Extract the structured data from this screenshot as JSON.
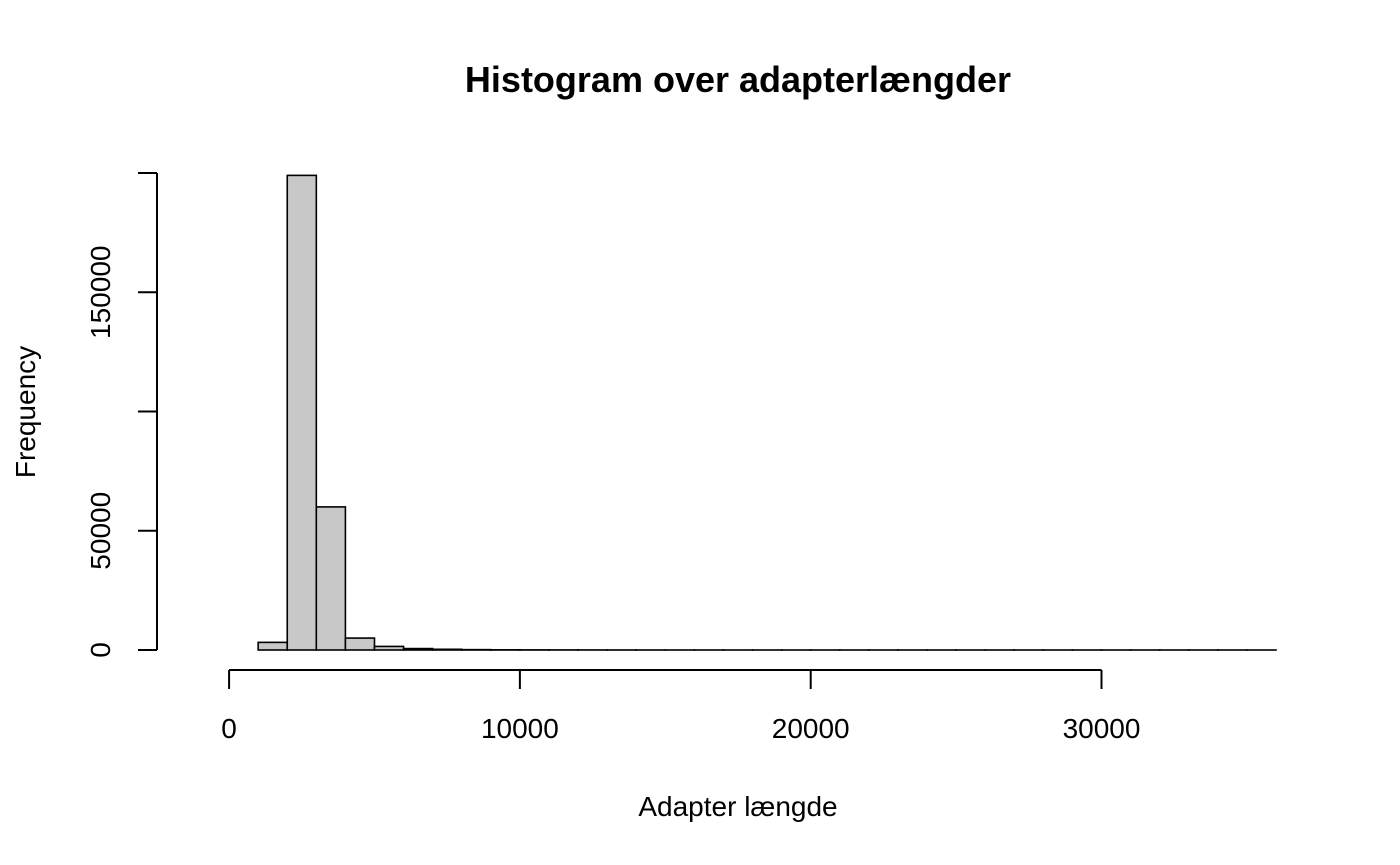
{
  "chart_data": {
    "type": "bar",
    "title": "Histogram over adapterlængder",
    "xlabel": "Adapter længde",
    "ylabel": "Frequency",
    "bar_fill": "#c8c8c8",
    "bar_stroke": "#000000",
    "bin_width": 1000,
    "bin_starts": [
      0,
      1000,
      2000,
      3000,
      4000,
      5000,
      6000,
      7000,
      8000,
      9000,
      10000,
      11000,
      12000,
      13000,
      14000,
      15000,
      16000,
      17000,
      18000,
      19000,
      20000,
      21000,
      22000,
      23000,
      24000,
      25000,
      26000,
      27000,
      28000,
      29000,
      30000,
      31000,
      32000,
      33000,
      34000,
      35000
    ],
    "values": [
      0,
      3200,
      199000,
      60000,
      5000,
      1500,
      600,
      300,
      150,
      80,
      50,
      30,
      20,
      15,
      10,
      8,
      6,
      5,
      4,
      3,
      3,
      2,
      2,
      1,
      1,
      1,
      1,
      1,
      1,
      1,
      1,
      1,
      1,
      1,
      1,
      1
    ],
    "xlim": [
      -1000,
      36000
    ],
    "ylim": [
      0,
      200000
    ],
    "x_ticks": [
      0,
      10000,
      20000,
      30000
    ],
    "x_tick_labels": [
      "0",
      "10000",
      "20000",
      "30000"
    ],
    "y_ticks": [
      0,
      50000,
      100000,
      150000,
      200000
    ],
    "y_tick_labels": [
      "0",
      "50000",
      "",
      "150000",
      ""
    ],
    "grid": false,
    "legend": "none"
  }
}
